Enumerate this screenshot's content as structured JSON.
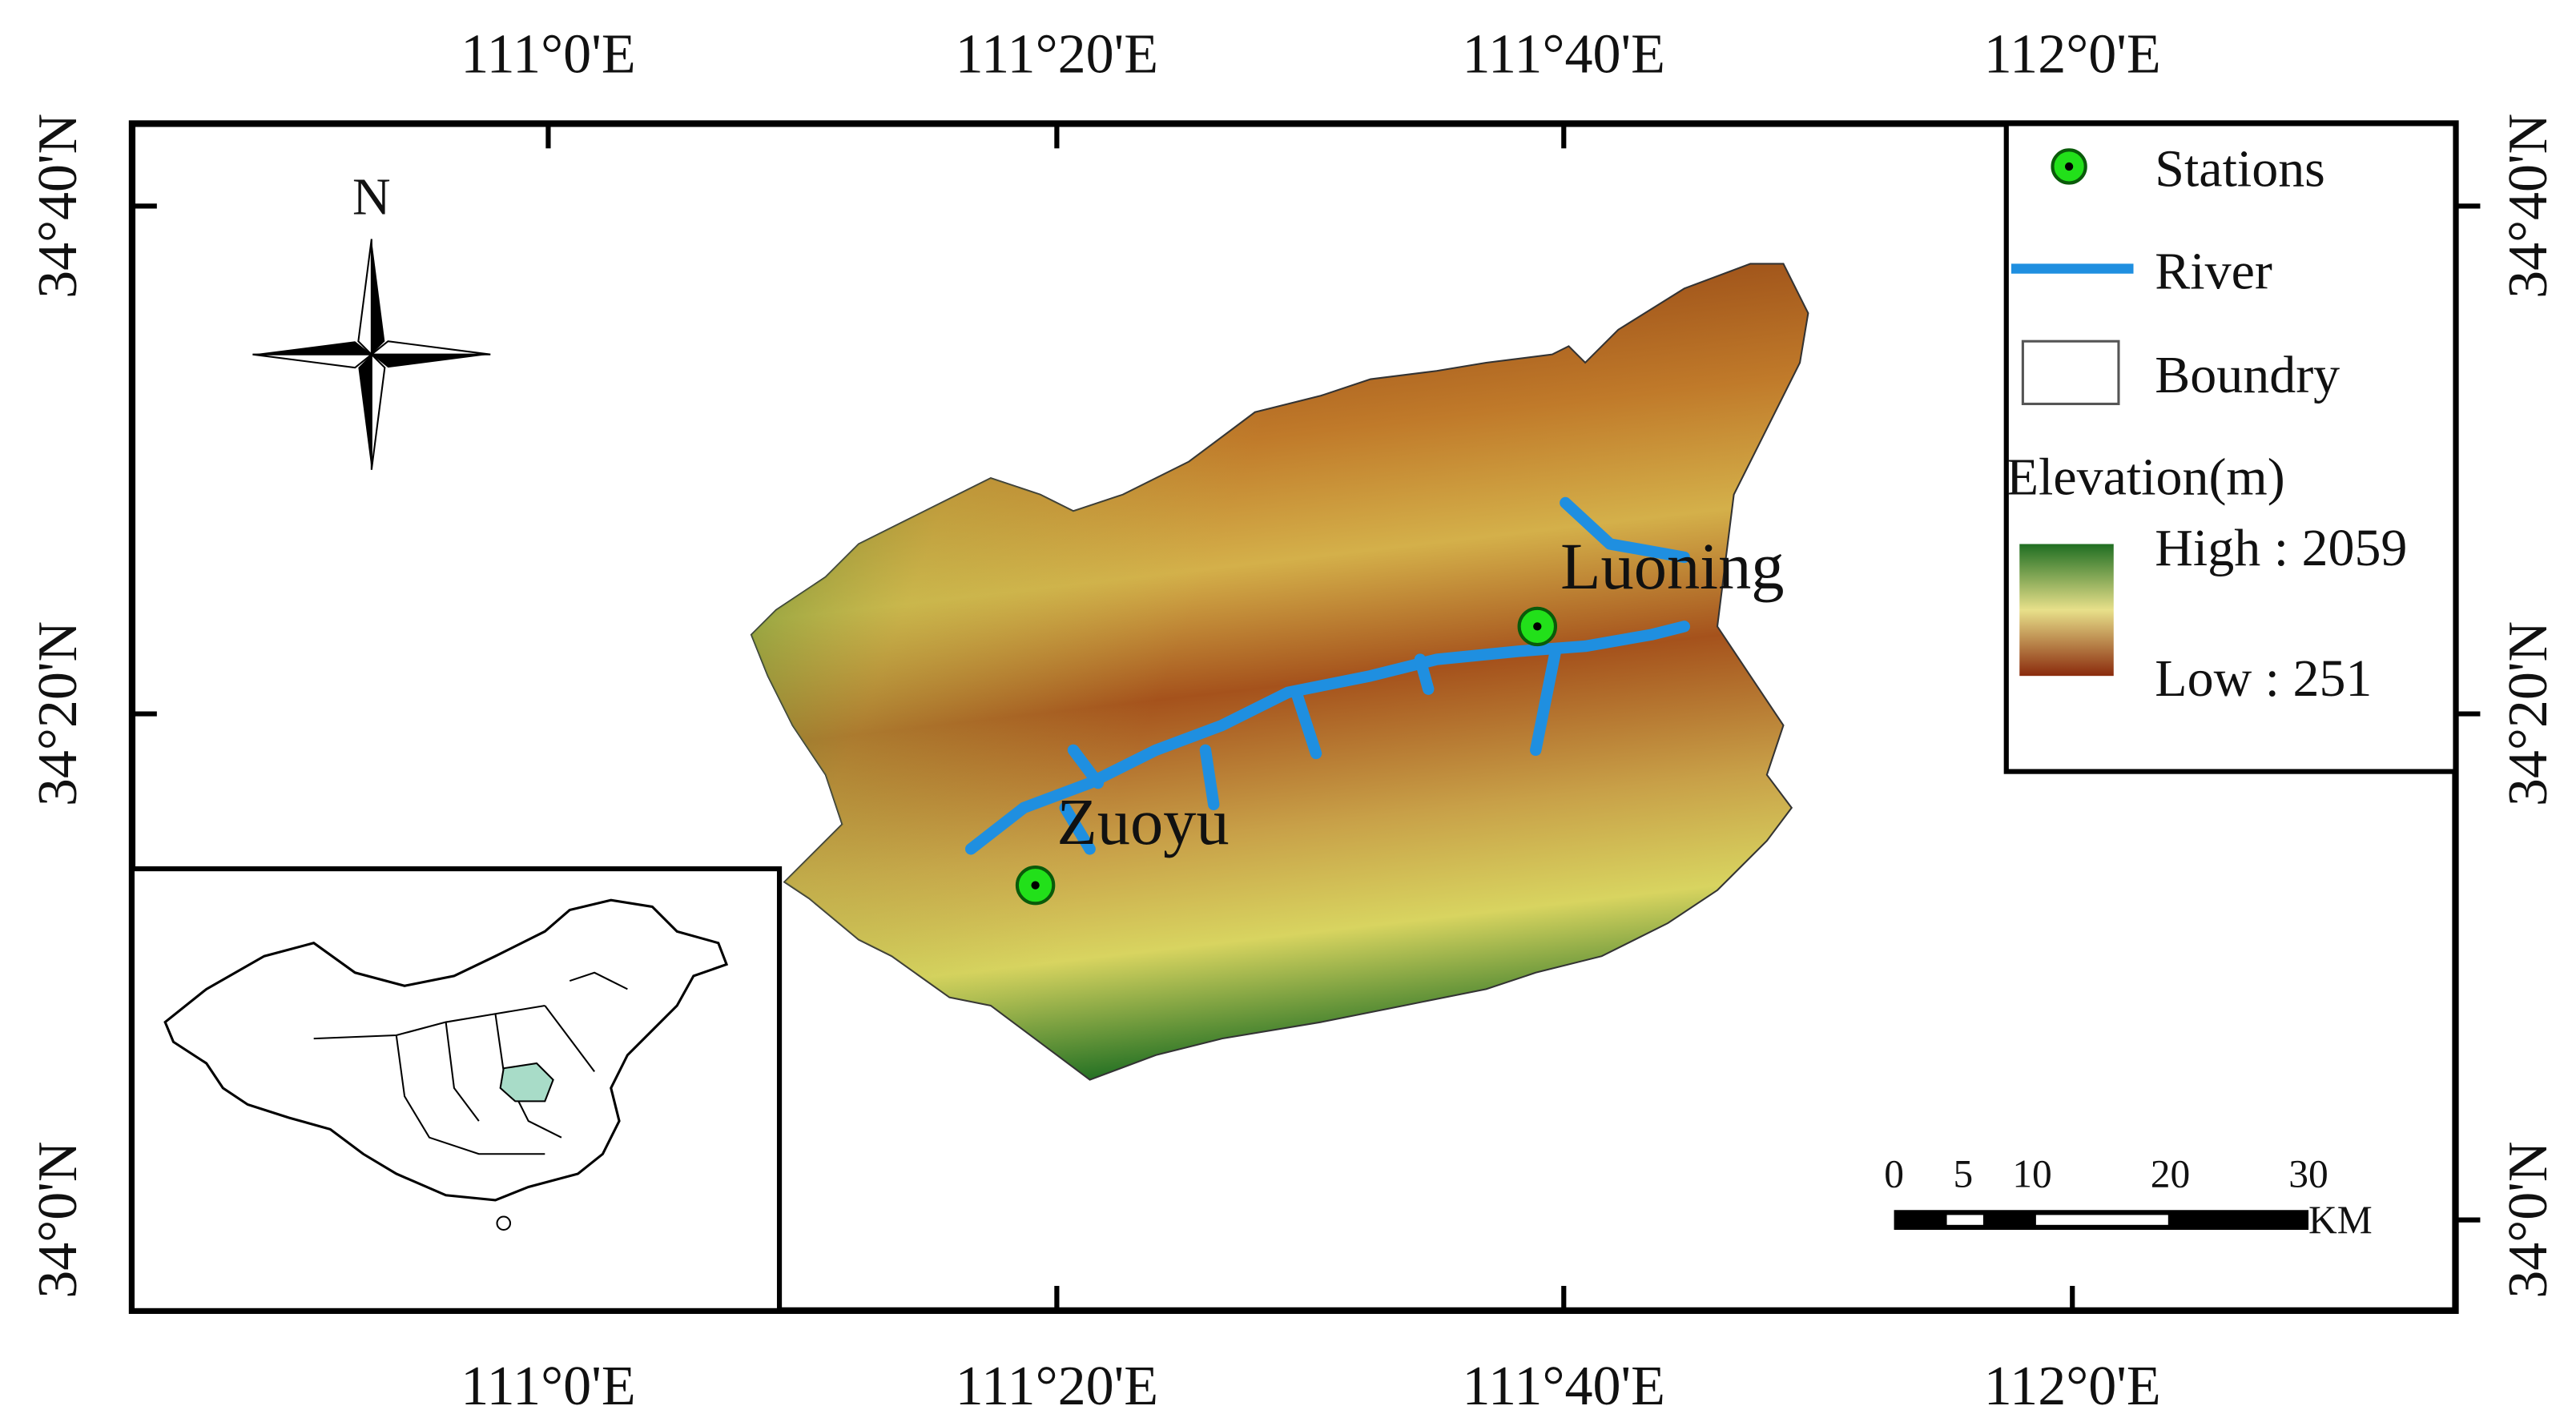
{
  "map": {
    "x_ticks": [
      "111°0'E",
      "111°20'E",
      "111°40'E",
      "112°0'E"
    ],
    "y_ticks": [
      "34°40'N",
      "34°20'N",
      "34°0'N"
    ],
    "north_arrow": "N",
    "legend": {
      "stations": "Stations",
      "river": "River",
      "boundary": "Boundry",
      "elevation_title": "Elevation(m)",
      "high": "High : 2059",
      "low": "Low : 251"
    },
    "stations": [
      {
        "name": "Luoning"
      },
      {
        "name": "Zuoyu"
      }
    ],
    "scale_bar": {
      "labels": [
        0,
        5,
        10,
        20,
        30
      ],
      "unit": "KM"
    }
  }
}
